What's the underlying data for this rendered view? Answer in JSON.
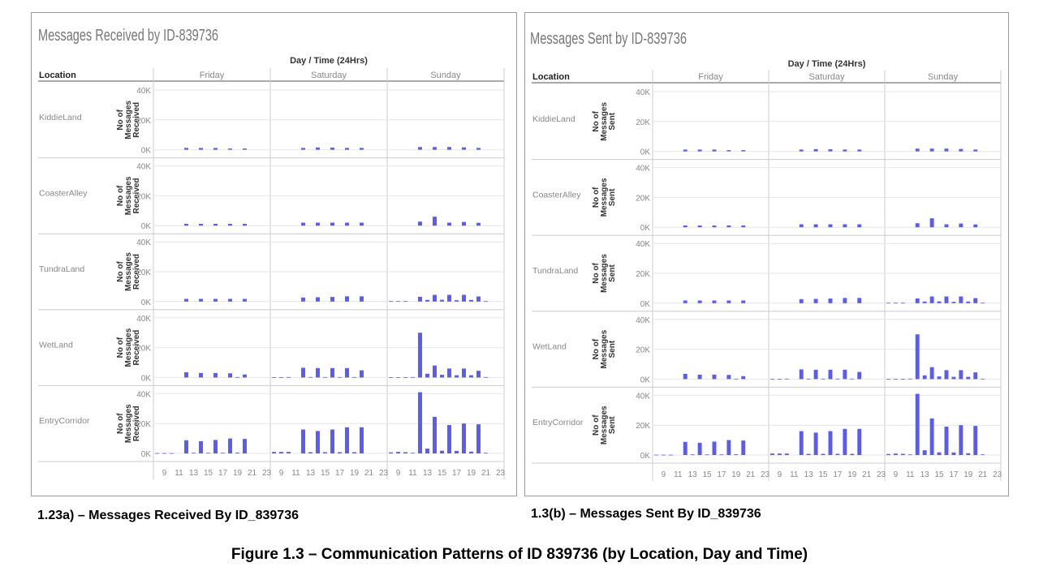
{
  "figure": {
    "title": "Figure 1.3 – Communication Patterns of ID 839736 (by Location, Day and Time)"
  },
  "colors": {
    "bar": "#5b5bf0",
    "title_text": "#777777",
    "axis_text": "#888888",
    "grid": "#e6e6e6",
    "divider": "#cccccc"
  },
  "chart_data": [
    {
      "type": "bar",
      "caption": "1.23a) – Messages Received By ID_839736",
      "title": "Messages Received by ID-839736",
      "column_header": "Day / Time (24Hrs)",
      "row_header": "Location",
      "ylabel": "No of Messages Received",
      "ylim": [
        0,
        40000
      ],
      "yticks": [
        "40K",
        "20K",
        "0K"
      ],
      "xticks": [
        "9",
        "11",
        "13",
        "15",
        "17",
        "19",
        "21",
        "23"
      ],
      "days": [
        "Friday",
        "Saturday",
        "Sunday"
      ],
      "hours": [
        8,
        9,
        10,
        11,
        12,
        13,
        14,
        15,
        16,
        17,
        18,
        19,
        20,
        21,
        22,
        23
      ],
      "locations": [
        {
          "name": "KiddieLand",
          "values": [
            [
              0,
              0,
              0,
              0,
              1200,
              0,
              1200,
              0,
              1200,
              0,
              800,
              0,
              800,
              0,
              0,
              0
            ],
            [
              0,
              0,
              0,
              0,
              1200,
              0,
              1500,
              0,
              1400,
              0,
              1200,
              0,
              1200,
              0,
              0,
              0
            ],
            [
              0,
              0,
              0,
              0,
              1800,
              0,
              1800,
              0,
              1800,
              0,
              1600,
              0,
              1200,
              0,
              0,
              0
            ]
          ]
        },
        {
          "name": "CoasterAlley",
          "values": [
            [
              0,
              0,
              0,
              0,
              1200,
              0,
              1200,
              0,
              1200,
              0,
              1200,
              0,
              1200,
              0,
              0,
              0
            ],
            [
              0,
              0,
              0,
              0,
              2000,
              0,
              2000,
              0,
              2000,
              0,
              2000,
              0,
              2000,
              0,
              0,
              0
            ],
            [
              0,
              0,
              0,
              0,
              2700,
              0,
              6000,
              0,
              2000,
              0,
              2500,
              0,
              1900,
              0,
              0,
              0
            ]
          ]
        },
        {
          "name": "TundraLand",
          "values": [
            [
              0,
              0,
              0,
              0,
              1800,
              0,
              1800,
              0,
              1800,
              0,
              1800,
              0,
              1800,
              0,
              0,
              0
            ],
            [
              0,
              0,
              0,
              0,
              2700,
              0,
              2900,
              0,
              3100,
              0,
              3500,
              0,
              3500,
              0,
              0,
              0
            ],
            [
              300,
              300,
              300,
              0,
              3200,
              1100,
              4500,
              1200,
              4500,
              900,
              4500,
              1100,
              3400,
              300,
              0,
              0
            ]
          ]
        },
        {
          "name": "WetLand",
          "values": [
            [
              0,
              0,
              0,
              0,
              3500,
              0,
              3000,
              0,
              3000,
              0,
              2800,
              300,
              2000,
              0,
              0,
              0
            ],
            [
              200,
              200,
              300,
              0,
              6500,
              300,
              6300,
              300,
              6300,
              300,
              6300,
              300,
              4800,
              0,
              0,
              0
            ],
            [
              100,
              100,
              200,
              300,
              30000,
              2500,
              8000,
              1800,
              6000,
              1500,
              6000,
              1500,
              4500,
              300,
              0,
              0
            ]
          ]
        },
        {
          "name": "EntryCorridor",
          "values": [
            [
              200,
              200,
              200,
              0,
              8800,
              400,
              8200,
              400,
              9000,
              400,
              10000,
              500,
              9700,
              0,
              0,
              0
            ],
            [
              1000,
              1000,
              1000,
              0,
              16000,
              800,
              15000,
              800,
              16000,
              800,
              17500,
              800,
              17500,
              0,
              0,
              0
            ],
            [
              700,
              1000,
              800,
              400,
              41000,
              3200,
              24500,
              1800,
              19000,
              1700,
              20000,
              1200,
              19500,
              400,
              0,
              0
            ]
          ]
        }
      ]
    },
    {
      "type": "bar",
      "caption": "1.3(b) – Messages Sent By ID_839736",
      "title": "Messages Sent by ID-839736",
      "column_header": "Day / Time (24Hrs)",
      "row_header": "Location",
      "ylabel": "No of Messages Sent",
      "ylim": [
        0,
        40000
      ],
      "yticks": [
        "40K",
        "20K",
        "0K"
      ],
      "xticks": [
        "9",
        "11",
        "13",
        "15",
        "17",
        "19",
        "21",
        "23"
      ],
      "days": [
        "Friday",
        "Saturday",
        "Sunday"
      ],
      "hours": [
        8,
        9,
        10,
        11,
        12,
        13,
        14,
        15,
        16,
        17,
        18,
        19,
        20,
        21,
        22,
        23
      ],
      "locations": [
        {
          "name": "KiddieLand",
          "values": [
            [
              0,
              0,
              0,
              0,
              1200,
              0,
              1200,
              0,
              1200,
              0,
              800,
              0,
              800,
              0,
              0,
              0
            ],
            [
              0,
              0,
              0,
              0,
              1200,
              0,
              1500,
              0,
              1400,
              0,
              1200,
              0,
              1200,
              0,
              0,
              0
            ],
            [
              0,
              0,
              0,
              0,
              1800,
              0,
              1800,
              0,
              1800,
              0,
              1600,
              0,
              1200,
              0,
              0,
              0
            ]
          ]
        },
        {
          "name": "CoasterAlley",
          "values": [
            [
              0,
              0,
              0,
              0,
              1200,
              0,
              1200,
              0,
              1200,
              0,
              1200,
              0,
              1200,
              0,
              0,
              0
            ],
            [
              0,
              0,
              0,
              0,
              2000,
              0,
              2000,
              0,
              2000,
              0,
              2000,
              0,
              2000,
              0,
              0,
              0
            ],
            [
              0,
              0,
              0,
              0,
              2700,
              0,
              6000,
              0,
              2000,
              0,
              2500,
              0,
              1900,
              0,
              0,
              0
            ]
          ]
        },
        {
          "name": "TundraLand",
          "values": [
            [
              0,
              0,
              0,
              0,
              1800,
              0,
              1800,
              0,
              1800,
              0,
              1800,
              0,
              1800,
              0,
              0,
              0
            ],
            [
              0,
              0,
              0,
              0,
              2700,
              0,
              2900,
              0,
              3100,
              0,
              3500,
              0,
              3500,
              0,
              0,
              0
            ],
            [
              300,
              300,
              300,
              0,
              3200,
              1100,
              4500,
              1200,
              4500,
              900,
              4500,
              1100,
              3400,
              300,
              0,
              0
            ]
          ]
        },
        {
          "name": "WetLand",
          "values": [
            [
              0,
              0,
              0,
              0,
              3500,
              0,
              3000,
              0,
              3000,
              0,
              2800,
              300,
              2000,
              0,
              0,
              0
            ],
            [
              200,
              200,
              300,
              0,
              6500,
              300,
              6300,
              300,
              6300,
              300,
              6300,
              300,
              4800,
              0,
              0,
              0
            ],
            [
              100,
              100,
              200,
              300,
              30000,
              2500,
              8000,
              1800,
              6000,
              1500,
              6000,
              1500,
              4500,
              300,
              0,
              0
            ]
          ]
        },
        {
          "name": "EntryCorridor",
          "values": [
            [
              200,
              200,
              200,
              0,
              8800,
              400,
              8200,
              400,
              9000,
              400,
              10000,
              500,
              9700,
              0,
              0,
              0
            ],
            [
              1000,
              1000,
              1000,
              0,
              16000,
              800,
              15000,
              800,
              16000,
              800,
              17500,
              800,
              17500,
              0,
              0,
              0
            ],
            [
              700,
              1000,
              800,
              400,
              41000,
              3200,
              24500,
              1800,
              19000,
              1700,
              20000,
              1200,
              19500,
              400,
              0,
              0
            ]
          ]
        }
      ]
    }
  ]
}
